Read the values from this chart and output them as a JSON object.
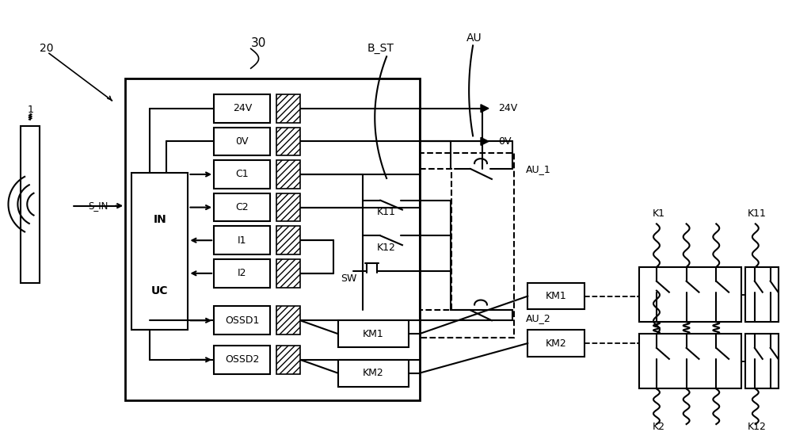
{
  "bg_color": "#ffffff",
  "fig_width": 10.0,
  "fig_height": 5.45,
  "dpi": 100,
  "labels": {
    "sensor_num": "1",
    "sensor_label": "20",
    "main_block": "30",
    "bst": "B_ST",
    "au": "AU",
    "v24": "24V",
    "v0": "0V",
    "c1": "C1",
    "c2": "C2",
    "i1": "I1",
    "i2": "I2",
    "ossd1": "OSSD1",
    "ossd2": "OSSD2",
    "in_label": "IN",
    "uc_label": "UC",
    "au1": "AU_1",
    "au2": "AU_2",
    "km1": "KM1",
    "km2": "KM2",
    "k11": "K11",
    "k12": "K12",
    "sw": "SW",
    "K1": "K1",
    "K11": "K11",
    "K2": "K2",
    "K12": "K12",
    "sin": "S_IN"
  }
}
